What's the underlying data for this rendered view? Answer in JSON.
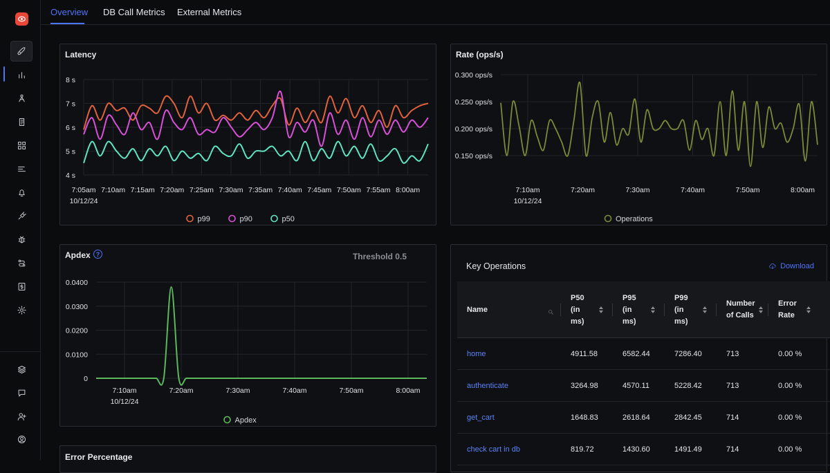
{
  "app": {
    "logo_icon": "eye-logo-icon",
    "accent": "#4e74f8"
  },
  "sidebar": {
    "items": [
      {
        "name": "rocket-icon"
      },
      {
        "name": "bar-chart-icon",
        "active": true
      },
      {
        "name": "service-map-icon"
      },
      {
        "name": "logs-icon"
      },
      {
        "name": "dashboard-grid-icon"
      },
      {
        "name": "list-icon"
      },
      {
        "name": "alerts-bell-icon"
      },
      {
        "name": "plug-icon"
      },
      {
        "name": "bug-icon"
      },
      {
        "name": "pipelines-icon"
      },
      {
        "name": "billing-icon"
      },
      {
        "name": "settings-gear-icon"
      }
    ],
    "bottom_items": [
      {
        "name": "layers-icon"
      },
      {
        "name": "chat-icon"
      },
      {
        "name": "invite-user-icon"
      },
      {
        "name": "account-icon"
      }
    ]
  },
  "tabs": [
    {
      "label": "Overview",
      "active": true
    },
    {
      "label": "DB Call Metrics"
    },
    {
      "label": "External Metrics"
    }
  ],
  "latency": {
    "title": "Latency",
    "chart_data": {
      "type": "line",
      "title": "Latency",
      "y_ticks": [
        "8 s",
        "7 s",
        "6 s",
        "5 s",
        "4 s"
      ],
      "ylim": [
        4,
        8
      ],
      "x_ticks": [
        "7:05am",
        "7:10am",
        "7:15am",
        "7:20am",
        "7:25am",
        "7:30am",
        "7:35am",
        "7:40am",
        "7:45am",
        "7:50am",
        "7:55am",
        "8:00am"
      ],
      "date_label": "10/12/24",
      "legend": "bottom-center",
      "series": [
        {
          "name": "p99",
          "color": "#e0623d",
          "values": [
            5.9,
            6.9,
            6.3,
            7.0,
            6.7,
            6.8,
            6.3,
            6.9,
            6.8,
            6.6,
            7.3,
            7.0,
            6.4,
            7.3,
            6.6,
            7.0,
            6.3,
            6.5,
            6.3,
            6.6,
            6.3,
            6.7,
            6.4,
            6.9,
            7.2,
            6.1,
            6.8,
            6.2,
            6.7,
            6.2,
            7.3,
            6.6,
            7.2,
            6.4,
            6.9,
            6.2,
            6.7,
            6.0,
            6.9,
            6.4,
            6.7,
            6.9,
            7.0
          ]
        },
        {
          "name": "p90",
          "color": "#d84fd8",
          "values": [
            5.7,
            6.4,
            5.5,
            6.5,
            6.1,
            5.7,
            6.6,
            5.9,
            6.2,
            5.5,
            6.7,
            6.2,
            5.9,
            6.4,
            5.7,
            5.9,
            5.8,
            6.4,
            6.0,
            5.6,
            5.9,
            6.2,
            5.9,
            6.4,
            7.5,
            5.6,
            6.2,
            5.8,
            6.3,
            5.2,
            6.6,
            5.7,
            6.3,
            5.5,
            6.4,
            5.6,
            6.3,
            5.7,
            6.3,
            5.8,
            6.3,
            6.0,
            6.4
          ]
        },
        {
          "name": "p50",
          "color": "#5fe3c2",
          "values": [
            4.5,
            5.4,
            4.8,
            5.4,
            5.0,
            4.7,
            5.1,
            4.6,
            5.1,
            4.8,
            5.2,
            4.6,
            5.0,
            4.7,
            4.9,
            4.6,
            5.2,
            4.9,
            4.8,
            5.3,
            4.7,
            5.0,
            5.0,
            5.2,
            4.8,
            5.0,
            4.6,
            5.4,
            4.6,
            5.1,
            4.7,
            5.4,
            4.8,
            5.2,
            4.7,
            5.3,
            4.6,
            4.8,
            5.1,
            4.5,
            4.8,
            4.6,
            5.3
          ]
        }
      ]
    }
  },
  "rate": {
    "title": "Rate (ops/s)",
    "chart_data": {
      "type": "line",
      "title": "Rate (ops/s)",
      "y_ticks": [
        "0.300 ops/s",
        "0.250 ops/s",
        "0.200 ops/s",
        "0.150 ops/s"
      ],
      "ylim": [
        0.15,
        0.3
      ],
      "x_ticks": [
        "7:10am",
        "7:20am",
        "7:30am",
        "7:40am",
        "7:50am",
        "8:00am"
      ],
      "date_label": "10/12/24",
      "legend": "bottom-center",
      "series": [
        {
          "name": "Operations",
          "color": "#7b8a3a",
          "values": [
            0.248,
            0.15,
            0.25,
            0.205,
            0.15,
            0.215,
            0.185,
            0.16,
            0.215,
            0.2,
            0.175,
            0.15,
            0.215,
            0.285,
            0.15,
            0.22,
            0.25,
            0.175,
            0.23,
            0.17,
            0.2,
            0.19,
            0.255,
            0.175,
            0.235,
            0.2,
            0.2,
            0.215,
            0.2,
            0.2,
            0.215,
            0.16,
            0.215,
            0.18,
            0.2,
            0.15,
            0.25,
            0.15,
            0.27,
            0.16,
            0.25,
            0.13,
            0.25,
            0.165,
            0.24,
            0.2,
            0.21,
            0.175,
            0.2,
            0.245,
            0.14,
            0.25,
            0.17
          ]
        }
      ]
    }
  },
  "apdex": {
    "title": "Apdex",
    "threshold_label": "Threshold 0.5",
    "chart_data": {
      "type": "line",
      "title": "Apdex",
      "y_ticks": [
        "0.0400",
        "0.0300",
        "0.0200",
        "0.0100",
        "0"
      ],
      "ylim": [
        0,
        0.04
      ],
      "x_ticks": [
        "7:10am",
        "7:20am",
        "7:30am",
        "7:40am",
        "7:50am",
        "8:00am"
      ],
      "date_label": "10/12/24",
      "legend": "bottom-center",
      "series": [
        {
          "name": "Apdex",
          "color": "#5cb85c",
          "values": [
            0,
            0,
            0,
            0,
            0,
            0,
            0,
            0,
            0,
            0,
            0.038,
            0,
            0,
            0,
            0,
            0,
            0,
            0,
            0,
            0,
            0,
            0,
            0,
            0,
            0,
            0,
            0,
            0,
            0,
            0,
            0,
            0,
            0,
            0,
            0,
            0,
            0,
            0,
            0,
            0,
            0,
            0,
            0,
            0,
            0
          ]
        }
      ]
    }
  },
  "error_panel": {
    "title": "Error Percentage"
  },
  "key_operations": {
    "title": "Key Operations",
    "download_label": "Download",
    "columns": [
      "Name",
      "P50\n(in\nms)",
      "P95\n(in\nms)",
      "P99\n(in\nms)",
      "Number\nof Calls",
      "Error\nRate"
    ],
    "rows": [
      {
        "name": "home",
        "p50": "4911.58",
        "p95": "6582.44",
        "p99": "7286.40",
        "calls": "713",
        "error": "0.00 %"
      },
      {
        "name": "authenticate",
        "p50": "3264.98",
        "p95": "4570.11",
        "p99": "5228.42",
        "calls": "713",
        "error": "0.00 %"
      },
      {
        "name": "get_cart",
        "p50": "1648.83",
        "p95": "2618.64",
        "p99": "2842.45",
        "calls": "714",
        "error": "0.00 %"
      },
      {
        "name": "check cart in db",
        "p50": "819.72",
        "p95": "1430.60",
        "p99": "1491.49",
        "calls": "714",
        "error": "0.00 %"
      }
    ]
  }
}
